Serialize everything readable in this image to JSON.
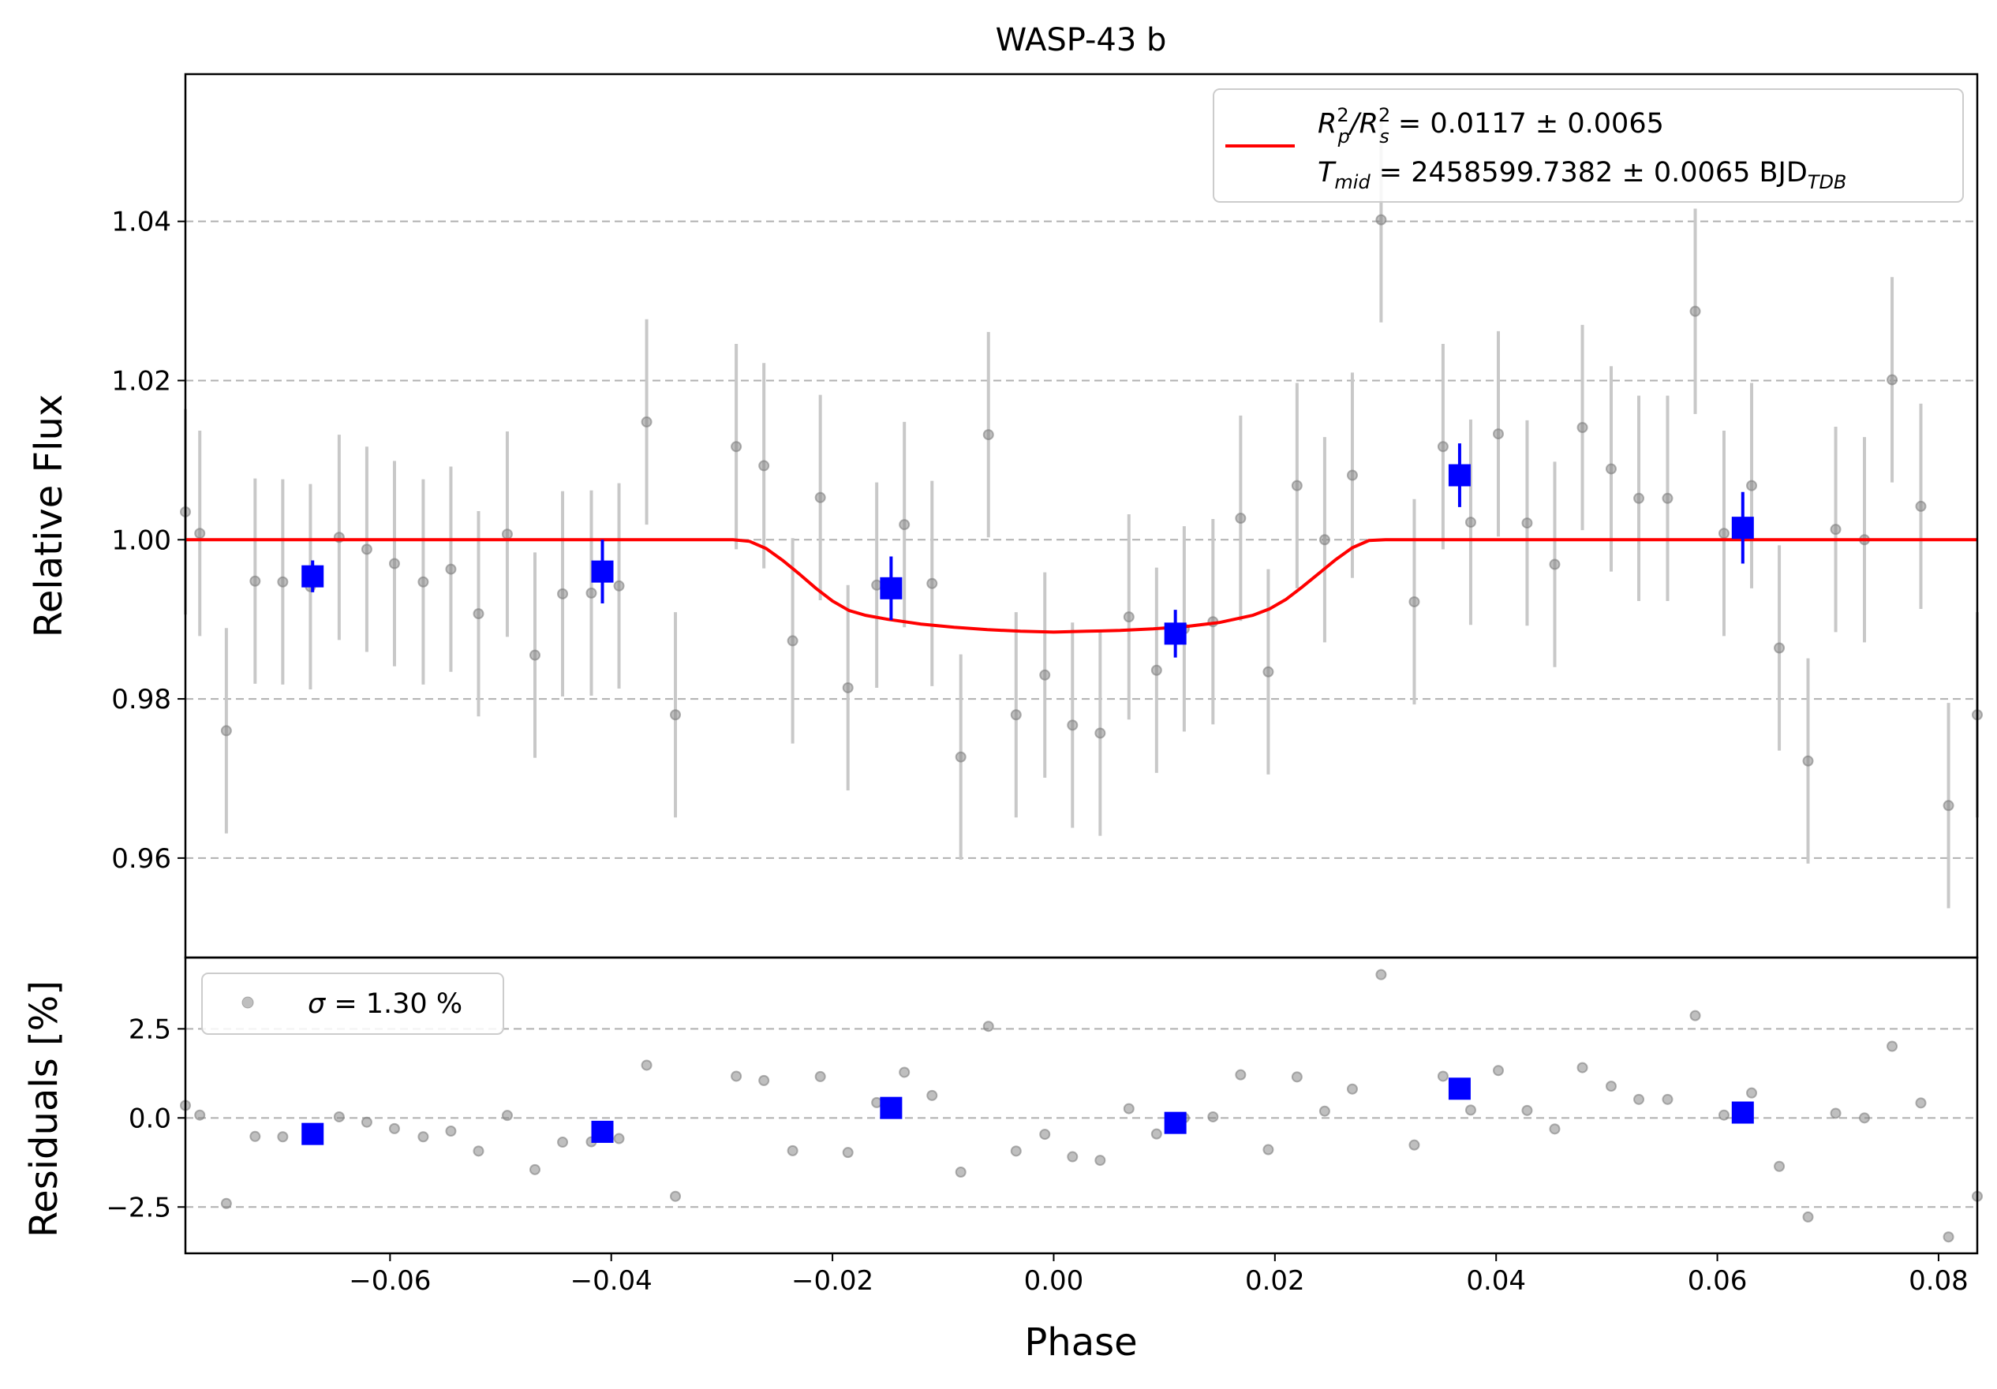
{
  "chart_data": [
    {
      "panel": "main",
      "type": "scatter",
      "title": "WASP-43 b",
      "xlabel": "Phase",
      "ylabel": "Relative Flux",
      "xlim": [
        -0.0785,
        0.0835
      ],
      "ylim": [
        0.9475,
        1.0585
      ],
      "xticks": [
        -0.06,
        -0.04,
        -0.02,
        0.0,
        0.02,
        0.04,
        0.06,
        0.08
      ],
      "xtick_labels": [
        "−0.06",
        "−0.04",
        "−0.02",
        "0.00",
        "0.02",
        "0.04",
        "0.06",
        "0.08"
      ],
      "yticks": [
        0.96,
        0.98,
        1.0,
        1.02,
        1.04
      ],
      "ytick_labels": [
        "0.96",
        "0.98",
        "1.00",
        "1.02",
        "1.04"
      ],
      "grid": "y dashed",
      "legend_position": "upper-right",
      "legend": {
        "line1_a": "R",
        "line1_a_sup": "2",
        "line1_a_sub": "p",
        "line1_b": "/R",
        "line1_b_sup": "2",
        "line1_b_sub": "s",
        "line1_c": " = 0.0117 ± 0.0065",
        "line2_a": "T",
        "line2_a_sub": "mid",
        "line2_b": " = 2458599.7382 ± 0.0065 BJD",
        "line2_b_sub": "TDB"
      },
      "colors": {
        "data": "#808080",
        "errorbar": "#c8c8c8",
        "binned": "#0000ff",
        "model": "#ff0000",
        "grid": "#b0b0b0"
      },
      "series": [
        {
          "kind": "data",
          "err": 0.0129,
          "points": [
            [
              -0.0785,
              1.0035
            ],
            [
              -0.0772,
              1.0008
            ],
            [
              -0.0748,
              0.976
            ],
            [
              -0.0722,
              0.9948
            ],
            [
              -0.0697,
              0.9947
            ],
            [
              -0.0672,
              0.9941
            ],
            [
              -0.0646,
              1.0003
            ],
            [
              -0.0621,
              0.9988
            ],
            [
              -0.0596,
              0.997
            ],
            [
              -0.057,
              0.9947
            ],
            [
              -0.0545,
              0.9963
            ],
            [
              -0.052,
              0.9907
            ],
            [
              -0.0494,
              1.0007
            ],
            [
              -0.0469,
              0.9855
            ],
            [
              -0.0444,
              0.9932
            ],
            [
              -0.0418,
              0.9933
            ],
            [
              -0.0393,
              0.9942
            ],
            [
              -0.0368,
              1.0148
            ],
            [
              -0.0342,
              0.978
            ],
            [
              -0.0287,
              1.0117
            ],
            [
              -0.0262,
              1.0093
            ],
            [
              -0.0236,
              0.9873
            ],
            [
              -0.0211,
              1.0053
            ],
            [
              -0.0186,
              0.9814
            ],
            [
              -0.016,
              0.9943
            ],
            [
              -0.0135,
              1.0019
            ],
            [
              -0.011,
              0.9945
            ],
            [
              -0.0084,
              0.9727
            ],
            [
              -0.0059,
              1.0132
            ],
            [
              -0.0034,
              0.978
            ],
            [
              -0.0008,
              0.983
            ],
            [
              0.0017,
              0.9767
            ],
            [
              0.0042,
              0.9757
            ],
            [
              0.0068,
              0.9903
            ],
            [
              0.0093,
              0.9836
            ],
            [
              0.0118,
              0.9888
            ],
            [
              0.0144,
              0.9897
            ],
            [
              0.0169,
              1.0027
            ],
            [
              0.0194,
              0.9834
            ],
            [
              0.022,
              1.0068
            ],
            [
              0.0245,
              1.0
            ],
            [
              0.027,
              1.0081
            ],
            [
              0.0296,
              1.0402
            ],
            [
              0.0326,
              0.9922
            ],
            [
              0.0352,
              1.0117
            ],
            [
              0.0377,
              1.0022
            ],
            [
              0.0402,
              1.0133
            ],
            [
              0.0428,
              1.0021
            ],
            [
              0.0453,
              0.9969
            ],
            [
              0.0478,
              1.0141
            ],
            [
              0.0504,
              1.0089
            ],
            [
              0.0529,
              1.0052
            ],
            [
              0.0555,
              1.0052
            ],
            [
              0.058,
              1.0287
            ],
            [
              0.0606,
              1.0008
            ],
            [
              0.0631,
              1.0068
            ],
            [
              0.0656,
              0.9864
            ],
            [
              0.0682,
              0.9722
            ],
            [
              0.0707,
              1.0013
            ],
            [
              0.0733,
              1.0
            ],
            [
              0.0758,
              1.0201
            ],
            [
              0.0784,
              1.0042
            ],
            [
              0.0809,
              0.9666
            ],
            [
              0.0835,
              0.978
            ]
          ]
        },
        {
          "kind": "binned",
          "points": [
            [
              -0.067,
              0.9954,
              0.002
            ],
            [
              -0.0408,
              0.996,
              0.004
            ],
            [
              -0.0147,
              0.9939,
              0.004
            ],
            [
              0.011,
              0.9882,
              0.003
            ],
            [
              0.0367,
              1.0081,
              0.004
            ],
            [
              0.0623,
              1.0015,
              0.0045
            ]
          ]
        },
        {
          "kind": "model",
          "points": [
            [
              -0.0785,
              1.0
            ],
            [
              -0.029,
              1.0
            ],
            [
              -0.0275,
              0.9998
            ],
            [
              -0.026,
              0.9989
            ],
            [
              -0.0245,
              0.9974
            ],
            [
              -0.023,
              0.9957
            ],
            [
              -0.0215,
              0.9939
            ],
            [
              -0.02,
              0.9923
            ],
            [
              -0.0185,
              0.9911
            ],
            [
              -0.017,
              0.9905
            ],
            [
              -0.015,
              0.99
            ],
            [
              -0.012,
              0.9894
            ],
            [
              -0.009,
              0.989
            ],
            [
              -0.006,
              0.9887
            ],
            [
              -0.003,
              0.9885
            ],
            [
              0.0,
              0.9884
            ],
            [
              0.003,
              0.9885
            ],
            [
              0.006,
              0.9886
            ],
            [
              0.009,
              0.9888
            ],
            [
              0.012,
              0.9891
            ],
            [
              0.015,
              0.9896
            ],
            [
              0.018,
              0.9905
            ],
            [
              0.0195,
              0.9913
            ],
            [
              0.021,
              0.9925
            ],
            [
              0.0225,
              0.9941
            ],
            [
              0.024,
              0.9958
            ],
            [
              0.0255,
              0.9975
            ],
            [
              0.027,
              0.999
            ],
            [
              0.0285,
              0.9999
            ],
            [
              0.03,
              1.0
            ],
            [
              0.0835,
              1.0
            ]
          ]
        }
      ]
    },
    {
      "panel": "residuals",
      "type": "scatter",
      "xlabel": "Phase",
      "ylabel": "Residuals [%]",
      "xlim": [
        -0.0785,
        0.0835
      ],
      "ylim": [
        -3.8,
        4.5
      ],
      "yticks": [
        -2.5,
        0.0,
        2.5
      ],
      "ytick_labels": [
        "−2.5",
        "0.0",
        "2.5"
      ],
      "grid": "y dashed",
      "legend_position": "upper-left",
      "legend": {
        "sigma": "σ",
        "text": " = 1.30 %"
      },
      "series": [
        {
          "kind": "data",
          "points": [
            [
              -0.0785,
              0.35
            ],
            [
              -0.0772,
              0.08
            ],
            [
              -0.0748,
              -2.4
            ],
            [
              -0.0722,
              -0.52
            ],
            [
              -0.0697,
              -0.53
            ],
            [
              -0.0672,
              -0.59
            ],
            [
              -0.0646,
              0.03
            ],
            [
              -0.0621,
              -0.12
            ],
            [
              -0.0596,
              -0.3
            ],
            [
              -0.057,
              -0.53
            ],
            [
              -0.0545,
              -0.37
            ],
            [
              -0.052,
              -0.93
            ],
            [
              -0.0494,
              0.07
            ],
            [
              -0.0469,
              -1.45
            ],
            [
              -0.0444,
              -0.68
            ],
            [
              -0.0418,
              -0.67
            ],
            [
              -0.0393,
              -0.58
            ],
            [
              -0.0368,
              1.48
            ],
            [
              -0.0342,
              -2.2
            ],
            [
              -0.0287,
              1.17
            ],
            [
              -0.0262,
              1.05
            ],
            [
              -0.0236,
              -0.92
            ],
            [
              -0.0211,
              1.16
            ],
            [
              -0.0186,
              -0.97
            ],
            [
              -0.016,
              0.43
            ],
            [
              -0.0135,
              1.28
            ],
            [
              -0.011,
              0.63
            ],
            [
              -0.0084,
              -1.52
            ],
            [
              -0.0059,
              2.57
            ],
            [
              -0.0034,
              -0.93
            ],
            [
              -0.0008,
              -0.46
            ],
            [
              0.0017,
              -1.09
            ],
            [
              0.0042,
              -1.19
            ],
            [
              0.0068,
              0.26
            ],
            [
              0.0093,
              -0.45
            ],
            [
              0.0118,
              0.0
            ],
            [
              0.0144,
              0.03
            ],
            [
              0.0169,
              1.21
            ],
            [
              0.0194,
              -0.89
            ],
            [
              0.022,
              1.15
            ],
            [
              0.0245,
              0.19
            ],
            [
              0.027,
              0.81
            ],
            [
              0.0296,
              4.02
            ],
            [
              0.0326,
              -0.76
            ],
            [
              0.0352,
              1.17
            ],
            [
              0.0377,
              0.22
            ],
            [
              0.0402,
              1.33
            ],
            [
              0.0428,
              0.21
            ],
            [
              0.0453,
              -0.31
            ],
            [
              0.0478,
              1.41
            ],
            [
              0.0504,
              0.89
            ],
            [
              0.0529,
              0.52
            ],
            [
              0.0555,
              0.52
            ],
            [
              0.058,
              2.87
            ],
            [
              0.0606,
              0.08
            ],
            [
              0.0631,
              0.7
            ],
            [
              0.0656,
              -1.36
            ],
            [
              0.0682,
              -2.78
            ],
            [
              0.0707,
              0.13
            ],
            [
              0.0733,
              0.0
            ],
            [
              0.0758,
              2.01
            ],
            [
              0.0784,
              0.42
            ],
            [
              0.0809,
              -3.34
            ],
            [
              0.0835,
              -2.2
            ]
          ]
        },
        {
          "kind": "binned",
          "points": [
            [
              -0.067,
              -0.45
            ],
            [
              -0.0408,
              -0.39
            ],
            [
              -0.0147,
              0.28
            ],
            [
              0.011,
              -0.14
            ],
            [
              0.0367,
              0.82
            ],
            [
              0.0623,
              0.15
            ]
          ]
        }
      ]
    }
  ]
}
